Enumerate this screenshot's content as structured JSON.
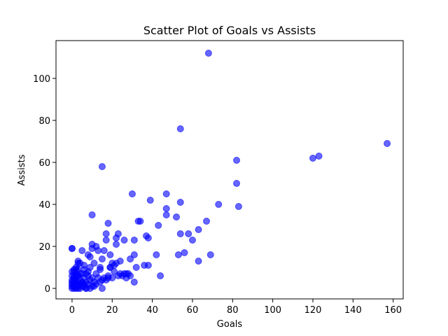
{
  "chart_data": {
    "type": "scatter",
    "title": "Scatter Plot of Goals vs Assists",
    "xlabel": "Goals",
    "ylabel": "Assists",
    "xlim": [
      -8,
      165
    ],
    "ylim": [
      -5,
      118
    ],
    "xticks": [
      0,
      20,
      40,
      60,
      80,
      100,
      120,
      140,
      160
    ],
    "yticks": [
      0,
      20,
      40,
      60,
      80,
      100
    ],
    "grid": false,
    "color": "#0000ff",
    "alpha": 0.6,
    "series": [
      {
        "x": [
          68,
          54,
          157,
          123,
          120,
          82,
          15,
          82,
          47,
          30,
          39,
          73,
          83,
          47,
          54,
          47,
          52,
          58,
          67,
          10,
          18,
          34,
          33,
          43,
          63,
          54,
          60,
          17,
          22,
          37,
          38,
          23,
          56,
          69,
          44,
          53,
          63,
          27,
          31,
          31,
          36,
          38,
          32,
          42,
          29,
          15,
          7,
          17,
          10,
          22,
          0,
          0,
          3,
          3,
          9,
          16,
          19,
          21,
          25,
          27,
          12,
          8,
          13,
          5,
          10,
          26,
          24,
          19,
          15,
          11,
          14,
          20,
          9,
          6,
          4,
          2,
          1,
          8,
          12,
          16,
          18,
          7,
          3,
          5,
          2,
          1,
          0,
          4,
          6,
          9,
          11,
          13,
          7,
          5,
          3,
          2,
          1,
          0,
          6,
          8,
          10,
          12,
          14,
          17,
          20,
          23,
          26,
          28,
          4,
          3,
          2,
          1,
          0,
          1,
          2,
          3,
          5,
          7,
          9,
          11,
          6,
          4,
          2,
          0,
          1,
          3,
          5,
          8,
          10,
          15,
          18,
          21,
          0,
          1,
          2,
          3,
          4,
          0,
          1,
          2,
          0,
          1,
          3,
          6,
          14,
          19,
          22,
          24,
          29,
          31
        ],
        "y": [
          112,
          76,
          69,
          63,
          62,
          61,
          58,
          50,
          45,
          45,
          42,
          40,
          39,
          38,
          41,
          35,
          34,
          26,
          32,
          35,
          31,
          32,
          32,
          30,
          28,
          26,
          23,
          26,
          24,
          25,
          24,
          26,
          17,
          16,
          6,
          16,
          13,
          5,
          16,
          23,
          11,
          11,
          10,
          16,
          14,
          0,
          0,
          23,
          21,
          21,
          19,
          19,
          13,
          12,
          15,
          18,
          16,
          11,
          6,
          7,
          20,
          16,
          18,
          18,
          19,
          23,
          7,
          10,
          14,
          12,
          9,
          12,
          10,
          9,
          12,
          10,
          8,
          8,
          7,
          5,
          5,
          7,
          6,
          7,
          6,
          5,
          4,
          4,
          5,
          4,
          3,
          5,
          3,
          3,
          2,
          2,
          1,
          1,
          1,
          2,
          1,
          2,
          3,
          4,
          5,
          6,
          7,
          7,
          0,
          0,
          0,
          0,
          0,
          1,
          1,
          1,
          1,
          0,
          0,
          1,
          2,
          2,
          2,
          3,
          3,
          3,
          3,
          6,
          5,
          4,
          6,
          8,
          2,
          4,
          5,
          6,
          7,
          8,
          9,
          9,
          6,
          6,
          9,
          11,
          10,
          10,
          12,
          13,
          6,
          3
        ]
      }
    ]
  }
}
